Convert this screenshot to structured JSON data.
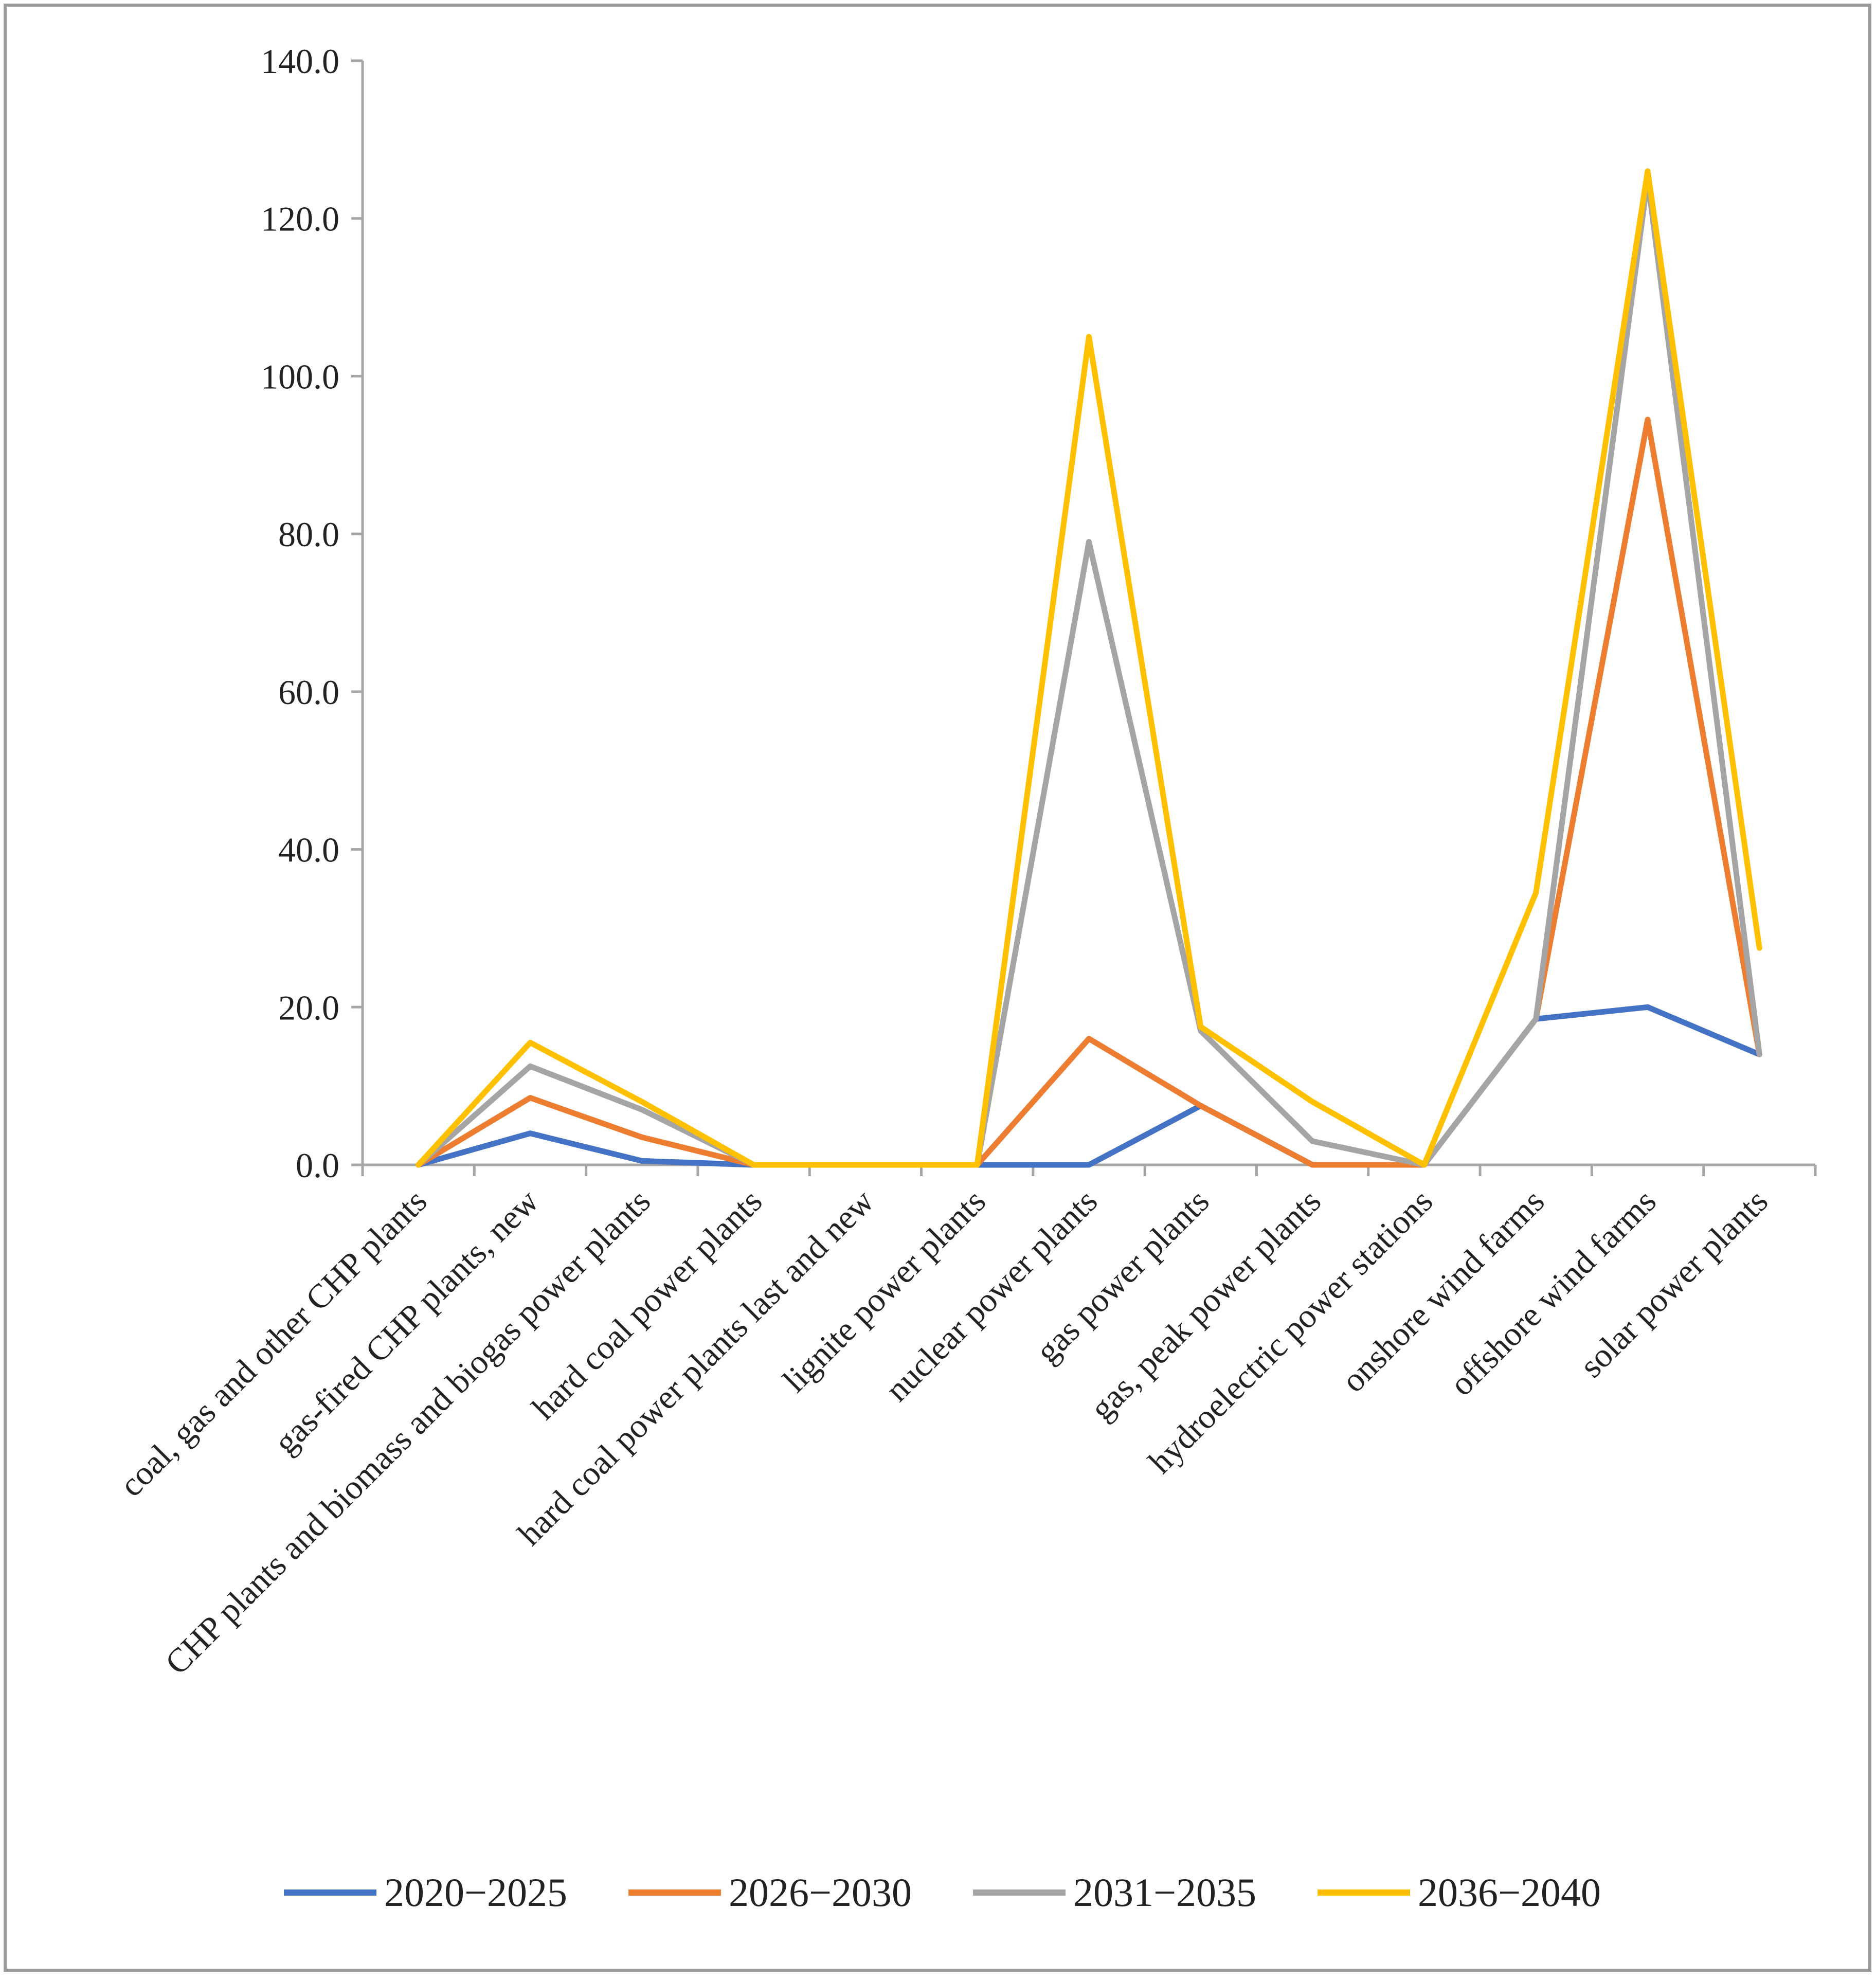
{
  "chart_data": {
    "type": "line",
    "title": "",
    "xlabel": "",
    "ylabel": "",
    "ylim": [
      0,
      140
    ],
    "ytick_step": 20,
    "ytick_format_decimals": 1,
    "grid": false,
    "legend_position": "bottom",
    "categories": [
      "coal, gas and other CHP plants",
      "gas-fired CHP plants, new",
      "CHP plants and biomass and biogas power plants",
      "hard coal power plants",
      "hard coal power plants last and new",
      "lignite power plants",
      "nuclear power plants",
      "gas power plants",
      "gas, peak power plants",
      "hydroelectric power stations",
      "onshore wind farms",
      "offshore wind farms",
      "solar power plants"
    ],
    "series": [
      {
        "name": "2020−2025",
        "color": "#4472C4",
        "values": [
          0,
          4,
          0.5,
          0,
          0,
          0,
          0,
          7.5,
          0,
          0,
          18.5,
          20,
          14
        ]
      },
      {
        "name": "2026−2030",
        "color": "#ED7D31",
        "values": [
          0,
          8.5,
          3.5,
          0,
          0,
          0,
          16,
          7.5,
          0,
          0,
          18.5,
          94.5,
          14
        ]
      },
      {
        "name": "2031−2035",
        "color": "#A5A5A5",
        "values": [
          0,
          12.5,
          7,
          0,
          0,
          0,
          79,
          17,
          3,
          0,
          18.5,
          125,
          14
        ]
      },
      {
        "name": "2036−2040",
        "color": "#FFC000",
        "values": [
          0,
          15.5,
          8,
          0,
          0,
          0,
          105,
          17.5,
          8,
          0,
          34.5,
          126,
          27.5
        ]
      }
    ]
  }
}
